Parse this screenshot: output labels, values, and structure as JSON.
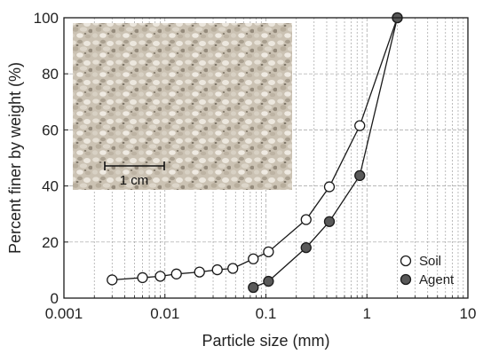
{
  "chart_data": {
    "type": "line",
    "xlabel": "Particle size (mm)",
    "ylabel": "Percent finer by weight (%)",
    "xscale": "log",
    "xlim": [
      0.001,
      10
    ],
    "ylim": [
      0,
      100
    ],
    "xticks": [
      "0.001",
      "0.01",
      "0.1",
      "1",
      "10"
    ],
    "yticks": [
      "0",
      "20",
      "40",
      "60",
      "80",
      "100"
    ],
    "grid": true,
    "legend_position": "bottom-right",
    "series": [
      {
        "name": "Soil",
        "marker": "open-circle",
        "x": [
          0.003,
          0.006,
          0.009,
          0.013,
          0.022,
          0.033,
          0.047,
          0.075,
          0.106,
          0.25,
          0.425,
          0.85,
          2.0
        ],
        "y": [
          6.5,
          7.3,
          7.8,
          8.6,
          9.3,
          10.1,
          10.6,
          14.0,
          16.5,
          28.0,
          39.7,
          61.5,
          100
        ]
      },
      {
        "name": "Agent",
        "marker": "filled-circle",
        "x": [
          0.075,
          0.106,
          0.25,
          0.425,
          0.85,
          2.0
        ],
        "y": [
          3.8,
          6.0,
          18.0,
          27.3,
          43.7,
          100
        ]
      }
    ],
    "inset": {
      "type": "photo",
      "subject": "crushed-stone-grains",
      "scale_bar_label": "1 cm"
    },
    "colors": {
      "soil_fill": "#ffffff",
      "agent_fill": "#595959",
      "line": "#1a1a1a",
      "grid": "#a0a0a0"
    }
  }
}
